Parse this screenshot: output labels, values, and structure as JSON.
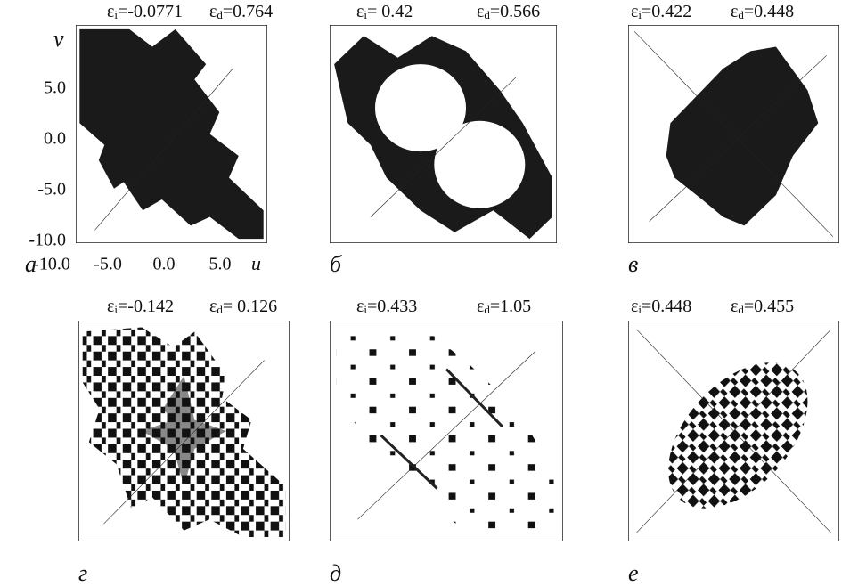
{
  "eps_symbol": "ε",
  "sub_i": "i",
  "sub_d": "d",
  "axes": {
    "y_label": "v",
    "x_label": "u",
    "yticks": [
      "5.0",
      "0.0",
      "-5.0",
      "-10.0"
    ],
    "xticks": [
      "-10.0",
      "-5.0",
      "0.0",
      "5.0"
    ]
  },
  "panels": [
    {
      "label": "a",
      "eps_i": "=-0.0771",
      "eps_d": "=0.764"
    },
    {
      "label": "б",
      "eps_i": "=  0.42",
      "eps_d": "=0.566"
    },
    {
      "label": "в",
      "eps_i": "=0.422",
      "eps_d": "=0.448"
    },
    {
      "label": "г",
      "eps_i": "=-0.142",
      "eps_d": "= 0.126"
    },
    {
      "label": "д",
      "eps_i": "=0.433",
      "eps_d": "=1.05"
    },
    {
      "label": "е",
      "eps_i": "=0.448",
      "eps_d": "=0.455"
    }
  ]
}
